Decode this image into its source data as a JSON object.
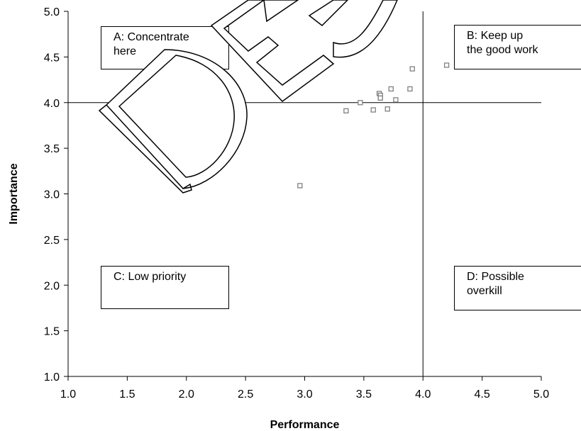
{
  "chart_data": {
    "type": "scatter",
    "title": "",
    "xlabel": "Performance",
    "ylabel": "Importance",
    "xlim": [
      1.0,
      5.0
    ],
    "ylim": [
      1.0,
      5.0
    ],
    "x_ticks": [
      "1.0",
      "1.5",
      "2.0",
      "2.5",
      "3.0",
      "3.5",
      "4.0",
      "4.5",
      "5.0"
    ],
    "y_ticks": [
      "1.0",
      "1.5",
      "2.0",
      "2.5",
      "3.0",
      "3.5",
      "4.0",
      "4.5",
      "5.0"
    ],
    "grid": false,
    "reference_lines": {
      "x": 4.0,
      "y": 4.0
    },
    "marker": "hollow-square",
    "marker_color": "#808080",
    "series": [
      {
        "points": [
          {
            "x": 2.96,
            "y": 3.09
          },
          {
            "x": 3.35,
            "y": 3.91
          },
          {
            "x": 3.47,
            "y": 4.0
          },
          {
            "x": 3.58,
            "y": 3.92
          },
          {
            "x": 3.63,
            "y": 4.1
          },
          {
            "x": 3.64,
            "y": 4.08
          },
          {
            "x": 3.64,
            "y": 4.05
          },
          {
            "x": 3.7,
            "y": 3.93
          },
          {
            "x": 3.73,
            "y": 4.15
          },
          {
            "x": 3.77,
            "y": 4.03
          },
          {
            "x": 3.89,
            "y": 4.15
          },
          {
            "x": 3.91,
            "y": 4.37
          },
          {
            "x": 4.2,
            "y": 4.41
          }
        ]
      }
    ],
    "annotations": [
      {
        "id": "a",
        "lines": [
          "A: Concentrate",
          "here"
        ]
      },
      {
        "id": "b",
        "lines": [
          "B: Keep up",
          "the good work"
        ]
      },
      {
        "id": "c",
        "lines": [
          "C: Low priority"
        ]
      },
      {
        "id": "d",
        "lines": [
          "D: Possible",
          "overkill"
        ]
      }
    ],
    "watermark": "DE"
  }
}
